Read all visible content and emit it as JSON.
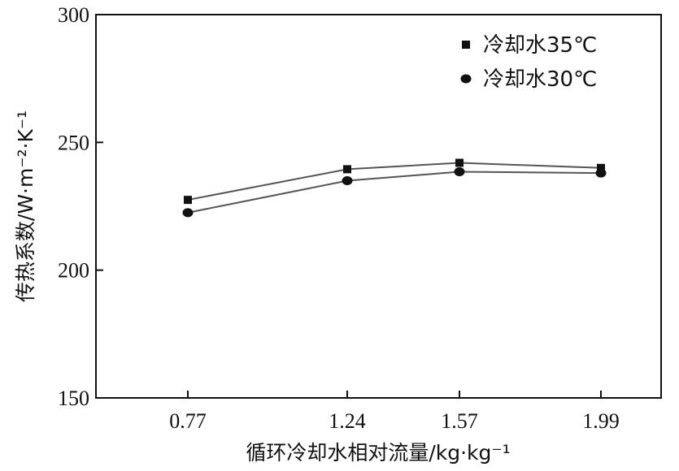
{
  "chart_data": {
    "type": "line",
    "categories": [
      "0.77",
      "1.24",
      "1.57",
      "1.99"
    ],
    "series": [
      {
        "name": "冷却水35℃",
        "marker": "square",
        "values": [
          227.5,
          239.5,
          242,
          240
        ]
      },
      {
        "name": "冷却水30℃",
        "marker": "circle",
        "values": [
          222.5,
          235,
          238.5,
          238
        ]
      }
    ],
    "title": "",
    "xlabel": "循环冷却水相对流量/kg·kg⁻¹",
    "ylabel": "传热系数/W·m⁻²·K⁻¹",
    "ylim": [
      150,
      300
    ],
    "yticks": [
      "150",
      "200",
      "250",
      "300"
    ],
    "legend_position": "top-right",
    "grid": false,
    "line_color": "#555555",
    "marker_color": "#111111"
  }
}
